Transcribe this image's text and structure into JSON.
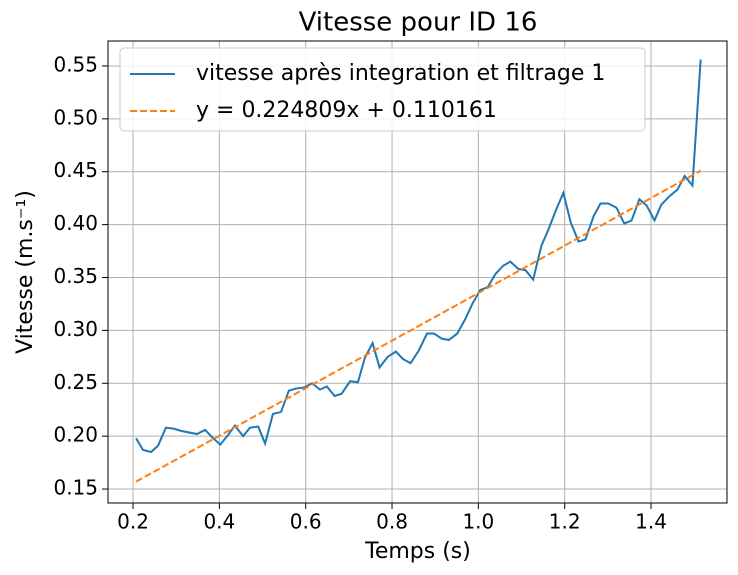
{
  "chart_data": {
    "type": "line",
    "title": "Vitesse pour ID 16",
    "xlabel": "Temps (s)",
    "ylabel": "Vitesse (m.s⁻¹)",
    "xlim": [
      0.142,
      1.576
    ],
    "ylim": [
      0.1368,
      0.5736
    ],
    "xticks": [
      0.2,
      0.4,
      0.6,
      0.8,
      {
        "value": 1,
        "label": "1.0"
      },
      1.2,
      1.4
    ],
    "yticks": [
      0.15,
      {
        "value": 0.2,
        "label": "0.20"
      },
      0.25,
      {
        "value": 0.3,
        "label": "0.30"
      },
      0.35,
      {
        "value": 0.4,
        "label": "0.40"
      },
      0.45,
      {
        "value": 0.5,
        "label": "0.50"
      },
      0.55
    ],
    "grid": true,
    "legend": "upper left",
    "series": [
      {
        "name": "vitesse après integration et filtrage 1",
        "color": "#1f77b4",
        "style": "solid",
        "x": [
          0.207,
          0.223,
          0.242,
          0.258,
          0.276,
          0.295,
          0.311,
          0.348,
          0.367,
          0.383,
          0.402,
          0.42,
          0.436,
          0.455,
          0.471,
          0.49,
          0.506,
          0.524,
          0.543,
          0.561,
          0.577,
          0.596,
          0.615,
          0.633,
          0.649,
          0.667,
          0.683,
          0.703,
          0.721,
          0.737,
          0.755,
          0.771,
          0.79,
          0.809,
          0.825,
          0.843,
          0.862,
          0.881,
          0.897,
          0.916,
          0.932,
          0.951,
          0.97,
          0.986,
          1.004,
          1.022,
          1.039,
          1.057,
          1.074,
          1.093,
          1.109,
          1.127,
          1.146,
          1.162,
          1.181,
          1.197,
          1.214,
          1.232,
          1.248,
          1.267,
          1.283,
          1.301,
          1.32,
          1.338,
          1.355,
          1.373,
          1.39,
          1.408,
          1.424,
          1.443,
          1.461,
          1.478,
          1.496,
          1.515
        ],
        "values": [
          0.198,
          0.187,
          0.185,
          0.191,
          0.208,
          0.207,
          0.205,
          0.202,
          0.206,
          0.199,
          0.192,
          0.201,
          0.21,
          0.2,
          0.208,
          0.209,
          0.193,
          0.221,
          0.223,
          0.243,
          0.245,
          0.246,
          0.25,
          0.244,
          0.247,
          0.238,
          0.24,
          0.252,
          0.251,
          0.274,
          0.288,
          0.265,
          0.275,
          0.28,
          0.273,
          0.269,
          0.281,
          0.297,
          0.297,
          0.292,
          0.291,
          0.297,
          0.311,
          0.325,
          0.338,
          0.341,
          0.353,
          0.361,
          0.365,
          0.358,
          0.357,
          0.348,
          0.38,
          0.395,
          0.415,
          0.43,
          0.402,
          0.384,
          0.386,
          0.408,
          0.42,
          0.42,
          0.416,
          0.401,
          0.404,
          0.424,
          0.418,
          0.404,
          0.419,
          0.427,
          0.433,
          0.446,
          0.437,
          0.556
        ]
      },
      {
        "name": "y = 0.224809x + 0.110161",
        "color": "#ff7f0e",
        "style": "dashed",
        "x": [
          0.207,
          1.515
        ],
        "values": [
          0.157,
          0.451
        ]
      }
    ]
  }
}
